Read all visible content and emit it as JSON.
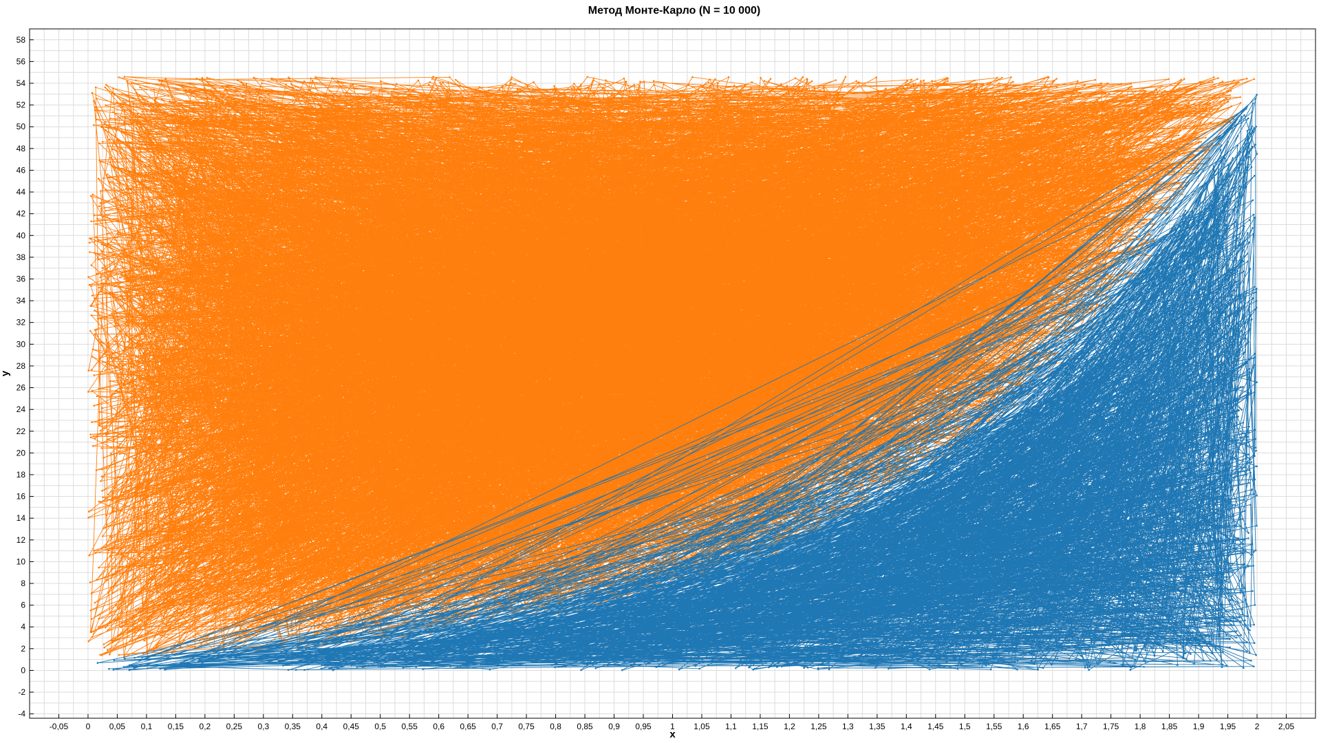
{
  "chart_data": {
    "type": "line",
    "title": "Метод Монте-Карло (N = 10 000)",
    "xlabel": "x",
    "ylabel": "y",
    "xlim": [
      -0.1,
      2.1
    ],
    "ylim": [
      -4.4,
      59
    ],
    "x_ticks": [
      "-0,05",
      "0",
      "0,05",
      "0,1",
      "0,15",
      "0,2",
      "0,25",
      "0,3",
      "0,35",
      "0,4",
      "0,45",
      "0,5",
      "0,55",
      "0,6",
      "0,65",
      "0,7",
      "0,75",
      "0,8",
      "0,85",
      "0,9",
      "0,95",
      "1",
      "1,05",
      "1,1",
      "1,15",
      "1,2",
      "1,25",
      "1,3",
      "1,35",
      "1,4",
      "1,45",
      "1,5",
      "1,55",
      "1,6",
      "1,65",
      "1,7",
      "1,75",
      "1,8",
      "1,85",
      "1,9",
      "1,95",
      "2",
      "2,05"
    ],
    "y_ticks": [
      "-4",
      "-2",
      "0",
      "2",
      "4",
      "6",
      "8",
      "10",
      "12",
      "14",
      "16",
      "18",
      "20",
      "22",
      "24",
      "26",
      "28",
      "30",
      "32",
      "34",
      "36",
      "38",
      "40",
      "42",
      "44",
      "46",
      "48",
      "50",
      "52",
      "54",
      "56",
      "58"
    ],
    "grid": true,
    "legend": "none",
    "sampling": {
      "n_points": 10000,
      "x_range": [
        0,
        2
      ],
      "y_range": [
        0,
        54.6
      ],
      "boundary": "y = e^(2x)"
    },
    "series": [
      {
        "color": "#ff7f0e",
        "rule": "above boundary"
      },
      {
        "color": "#1f77b4",
        "rule": "below boundary"
      }
    ]
  }
}
